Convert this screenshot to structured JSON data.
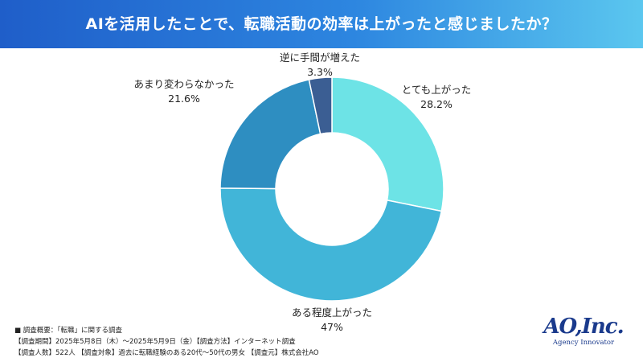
{
  "header": {
    "title": "AIを活用したことで、転職活動の効率は上がったと感じましたか？",
    "bar_color_start": "#1f5ec9",
    "bar_color_end": "#5bc7ef"
  },
  "chart_data": {
    "type": "pie",
    "donut": true,
    "title": "AIを活用したことで、転職活動の効率は上がったと感じましたか？",
    "slices": [
      {
        "label": "とても上がった",
        "value": 28.2,
        "display": "28.2%",
        "color": "#6de3e6"
      },
      {
        "label": "ある程度上がった",
        "value": 47,
        "display": "47%",
        "color": "#41b5d8"
      },
      {
        "label": "あまり変わらなかった",
        "value": 21.6,
        "display": "21.6%",
        "color": "#2e8ec1"
      },
      {
        "label": "逆に手間が増えた",
        "value": 3.3,
        "display": "3.3%",
        "color": "#3b5e93"
      }
    ],
    "start_angle_deg": 0,
    "direction": "clockwise"
  },
  "footnotes": [
    "■ 調査概要：「転職」に関する調査",
    "【調査期間】2025年5月8日（木）～2025年5月9日（金）【調査方法】インターネット調査",
    "【調査人数】522人 【調査対象】過去に転職経験のある20代～50代の男女 【調査元】株式会社AO"
  ],
  "logo": {
    "mark": "AO,Inc.",
    "subtitle": "Agency Innovator"
  }
}
